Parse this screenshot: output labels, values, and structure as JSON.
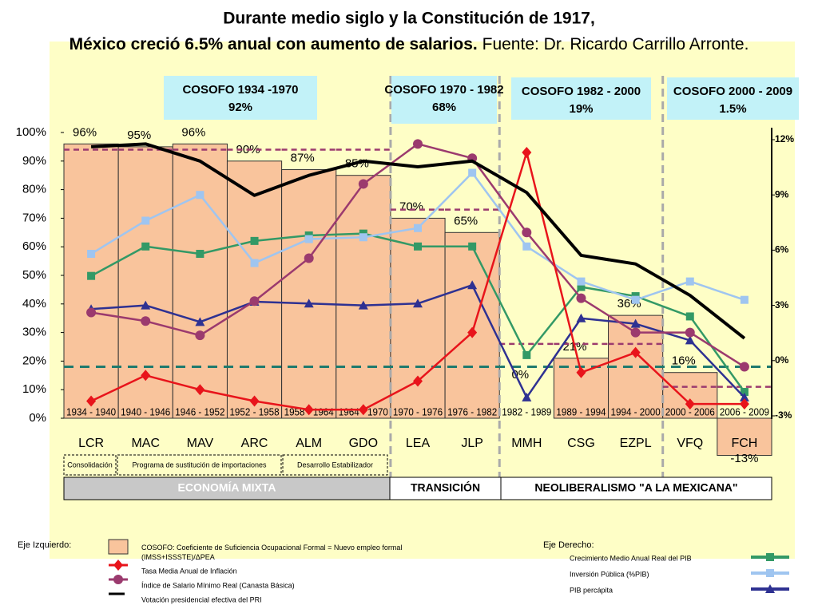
{
  "title": "Durante medio siglo y la Constitución de 1917,",
  "title_line2": "México creció 6.5% anual con aumento de salarios.",
  "source": " Fuente: Dr. Ricardo Carrillo Arronte.",
  "chart_data": {
    "type": "bar",
    "categories": [
      "1934 - 1940",
      "1940 - 1946",
      "1946 - 1952",
      "1952 - 1958",
      "1958 - 1964",
      "1964 - 1970",
      "1970 - 1976",
      "1976 - 1982",
      "1982 - 1989",
      "1989 - 1994",
      "1994 - 2000",
      "2000 - 2006",
      "2006 - 2009"
    ],
    "presidents": [
      "LCR",
      "MAC",
      "MAV",
      "ARC",
      "ALM",
      "GDO",
      "LEA",
      "JLP",
      "MMH",
      "CSG",
      "EZPL",
      "VFQ",
      "FCH"
    ],
    "values": [
      96,
      95,
      96,
      90,
      87,
      85,
      70,
      65,
      0,
      21,
      36,
      16,
      -13
    ],
    "value_labels": [
      "96%",
      "95%",
      "96%",
      "90%",
      "87%",
      "85%",
      "70%",
      "65%",
      "0%",
      "21%",
      "36%",
      "16%",
      "-13%"
    ],
    "color": "#f9c49c",
    "ylim": [
      0,
      100
    ],
    "yticks": [
      {
        "value": 0,
        "label": "0%"
      },
      {
        "value": 10,
        "label": "10%"
      },
      {
        "value": 20,
        "label": "20%"
      },
      {
        "value": 30,
        "label": "30%"
      },
      {
        "value": 40,
        "label": "40%"
      },
      {
        "value": 50,
        "label": "50%"
      },
      {
        "value": 60,
        "label": "60%"
      },
      {
        "value": 70,
        "label": "70%"
      },
      {
        "value": 80,
        "label": "80%"
      },
      {
        "value": 90,
        "label": "90%"
      },
      {
        "value": 100,
        "label": "100%"
      }
    ],
    "y2lim": [
      -3,
      12
    ],
    "y2ticks": [
      {
        "value": -3,
        "label": "-3%"
      },
      {
        "value": 0,
        "label": "0%"
      },
      {
        "value": 3,
        "label": "3%"
      },
      {
        "value": 6,
        "label": "6%"
      },
      {
        "value": 9,
        "label": "9%"
      },
      {
        "value": 12,
        "label": "12%"
      }
    ],
    "series": [
      {
        "name": "Tasa Media Anual de Inflación",
        "color": "#e8141b",
        "marker": "diamond",
        "axis": "y",
        "values": [
          6,
          15,
          10,
          6,
          3,
          3,
          13,
          30,
          93,
          16,
          23,
          5,
          5
        ]
      },
      {
        "name": "Índice de Salario Mínimo Real (Canasta Básica)",
        "color": "#9b3a6e",
        "marker": "circle",
        "axis": "y",
        "values": [
          37,
          34,
          29,
          41,
          56,
          82,
          96,
          91,
          65,
          42,
          30,
          30,
          18
        ]
      },
      {
        "name": "Votación presidencial efectiva del PRI",
        "color": "#000000",
        "marker": "none",
        "axis": "y",
        "values": [
          95,
          96,
          90,
          78,
          85,
          90,
          88,
          90,
          79,
          57,
          54,
          43,
          28
        ]
      },
      {
        "name": "Crecimiento Medio Anual Real del PIB",
        "color": "#339966",
        "marker": "square",
        "axis": "y2",
        "values": [
          4.6,
          6.2,
          5.8,
          6.5,
          6.8,
          6.9,
          6.2,
          6.2,
          0.3,
          4.0,
          3.5,
          2.4,
          -1.7
        ]
      },
      {
        "name": "Inversión Pública (%PIB)",
        "color": "#9fc5f0",
        "marker": "square",
        "axis": "y2",
        "values": [
          5.8,
          7.6,
          9.0,
          5.3,
          6.6,
          6.7,
          7.2,
          10.2,
          6.2,
          4.3,
          3.3,
          4.3,
          3.3
        ]
      },
      {
        "name": "PIB percápita",
        "color": "#2e3192",
        "marker": "triangle",
        "axis": "y2",
        "values": [
          2.8,
          3.0,
          2.1,
          3.2,
          3.1,
          3.0,
          3.1,
          4.1,
          -2.0,
          2.3,
          2.0,
          1.1,
          -2.0
        ]
      }
    ],
    "cosofo_average": [
      94,
      94,
      94,
      94,
      94,
      94,
      73,
      73,
      26,
      26,
      26,
      11,
      11
    ],
    "reference_level": 18,
    "cosofo_periods": [
      {
        "title": "COSOFO 1934 -1970",
        "value": "92%"
      },
      {
        "title": "COSOFO 1970 - 1982",
        "value": "68%"
      },
      {
        "title": "COSOFO 1982 - 2000",
        "value": "19%"
      },
      {
        "title": "COSOFO 2000 - 2009",
        "value": "1.5%"
      }
    ],
    "phases": [
      "Consolidación",
      "Programa de sustitución de importaciones",
      "Desarrollo Estabilizador"
    ],
    "eras": [
      "ECONOMÍA MIXTA",
      "TRANSICIÓN",
      "NEOLIBERALISMO \"A LA MEXICANA\""
    ],
    "legend_left_title": "Eje Izquierdo:",
    "legend_right_title": "Eje Derecho:",
    "bar_legend": "COSOFO: Coeficiente de Suficiencia Ocupacional Formal = Nuevo empleo formal (IMSS+ISSSTE)/ΔPEA"
  }
}
